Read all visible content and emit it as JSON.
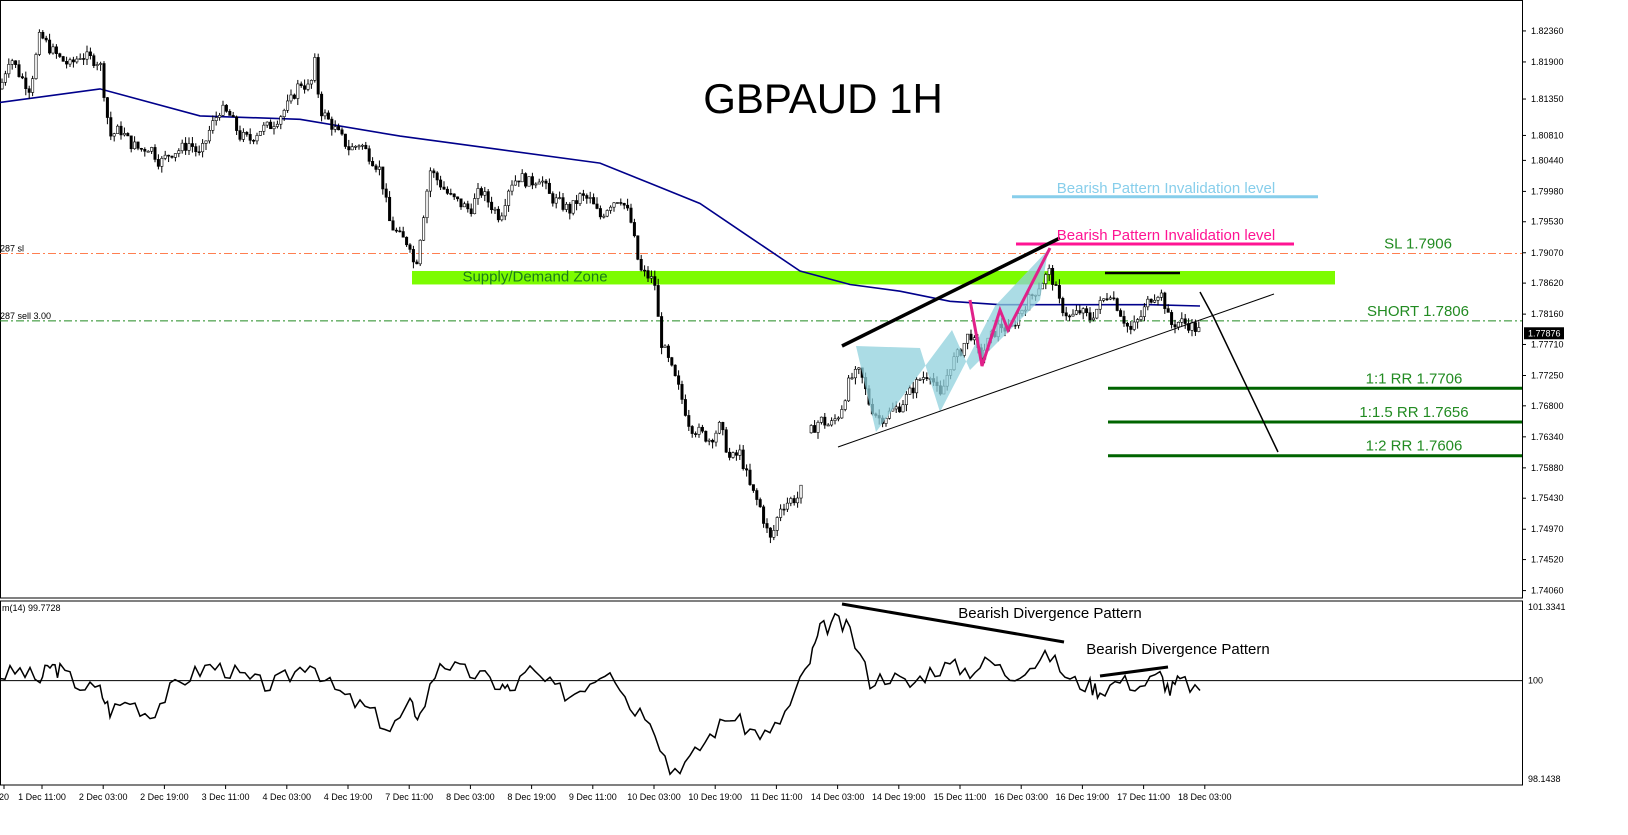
{
  "title": "GBPAUD 1H",
  "chart_data": [
    {
      "type": "candlestick",
      "title": "GBPAUD 1H",
      "y_ticks": [
        "1.82360",
        "1.81900",
        "1.81350",
        "1.80810",
        "1.80440",
        "1.79980",
        "1.79530",
        "1.79070",
        "1.78620",
        "1.78160",
        "1.77710",
        "1.77250",
        "1.76800",
        "1.76340",
        "1.75880",
        "1.75430",
        "1.74970",
        "1.74520",
        "1.74060"
      ],
      "x_ticks": [
        "20",
        "1 Dec 11:00",
        "2 Dec 03:00",
        "2 Dec 19:00",
        "3 Dec 11:00",
        "4 Dec 03:00",
        "4 Dec 19:00",
        "7 Dec 11:00",
        "8 Dec 03:00",
        "8 Dec 19:00",
        "9 Dec 11:00",
        "10 Dec 03:00",
        "10 Dec 19:00",
        "11 Dec 11:00",
        "14 Dec 03:00",
        "14 Dec 19:00",
        "15 Dec 11:00",
        "16 Dec 03:00",
        "16 Dec 19:00",
        "17 Dec 11:00",
        "18 Dec 03:00"
      ],
      "current_price": "1.77876",
      "ylim": [
        1.7395,
        1.827
      ],
      "close_path": [
        [
          0,
          1.815
        ],
        [
          10,
          1.82
        ],
        [
          20,
          1.817
        ],
        [
          30,
          1.815
        ],
        [
          40,
          1.823
        ],
        [
          50,
          1.821
        ],
        [
          60,
          1.8195
        ],
        [
          70,
          1.8185
        ],
        [
          80,
          1.82
        ],
        [
          90,
          1.8195
        ],
        [
          100,
          1.819
        ],
        [
          110,
          1.808
        ],
        [
          120,
          1.809
        ],
        [
          130,
          1.807
        ],
        [
          140,
          1.806
        ],
        [
          150,
          1.8065
        ],
        [
          160,
          1.804
        ],
        [
          170,
          1.8055
        ],
        [
          180,
          1.806
        ],
        [
          190,
          1.807
        ],
        [
          200,
          1.805
        ],
        [
          210,
          1.809
        ],
        [
          220,
          1.812
        ],
        [
          230,
          1.811
        ],
        [
          240,
          1.808
        ],
        [
          250,
          1.8075
        ],
        [
          260,
          1.809
        ],
        [
          270,
          1.8095
        ],
        [
          280,
          1.811
        ],
        [
          290,
          1.813
        ],
        [
          300,
          1.816
        ],
        [
          310,
          1.815
        ],
        [
          315,
          1.819
        ],
        [
          320,
          1.812
        ],
        [
          330,
          1.81
        ],
        [
          340,
          1.808
        ],
        [
          350,
          1.806
        ],
        [
          360,
          1.807
        ],
        [
          370,
          1.805
        ],
        [
          380,
          1.803
        ],
        [
          390,
          1.795
        ],
        [
          400,
          1.793
        ],
        [
          410,
          1.792
        ],
        [
          415,
          1.788
        ],
        [
          420,
          1.793
        ],
        [
          430,
          1.803
        ],
        [
          440,
          1.801
        ],
        [
          450,
          1.799
        ],
        [
          460,
          1.798
        ],
        [
          470,
          1.797
        ],
        [
          480,
          1.8
        ],
        [
          490,
          1.798
        ],
        [
          500,
          1.796
        ],
        [
          510,
          1.801
        ],
        [
          520,
          1.802
        ],
        [
          530,
          1.801
        ],
        [
          540,
          1.802
        ],
        [
          550,
          1.799
        ],
        [
          560,
          1.798
        ],
        [
          570,
          1.797
        ],
        [
          580,
          1.799
        ],
        [
          590,
          1.7985
        ],
        [
          600,
          1.796
        ],
        [
          610,
          1.798
        ],
        [
          620,
          1.799
        ],
        [
          630,
          1.796
        ],
        [
          640,
          1.788
        ],
        [
          650,
          1.787
        ],
        [
          655,
          1.786
        ],
        [
          660,
          1.778
        ],
        [
          670,
          1.774
        ],
        [
          680,
          1.77
        ],
        [
          690,
          1.765
        ],
        [
          700,
          1.764
        ],
        [
          710,
          1.763
        ],
        [
          720,
          1.765
        ],
        [
          730,
          1.76
        ],
        [
          740,
          1.761
        ],
        [
          750,
          1.756
        ],
        [
          760,
          1.753
        ],
        [
          770,
          1.748
        ],
        [
          775,
          1.75
        ],
        [
          780,
          1.753
        ],
        [
          790,
          1.754
        ],
        [
          800,
          1.7545
        ],
        [
          810,
          1.764
        ],
        [
          820,
          1.766
        ],
        [
          830,
          1.765
        ],
        [
          840,
          1.767
        ],
        [
          850,
          1.772
        ],
        [
          860,
          1.773
        ],
        [
          870,
          1.768
        ],
        [
          880,
          1.766
        ],
        [
          890,
          1.767
        ],
        [
          900,
          1.768
        ],
        [
          910,
          1.77
        ],
        [
          920,
          1.772
        ],
        [
          930,
          1.773
        ],
        [
          940,
          1.769
        ],
        [
          950,
          1.774
        ],
        [
          960,
          1.776
        ],
        [
          970,
          1.779
        ],
        [
          980,
          1.775
        ],
        [
          990,
          1.778
        ],
        [
          1000,
          1.78
        ],
        [
          1010,
          1.779
        ],
        [
          1020,
          1.782
        ],
        [
          1030,
          1.784
        ],
        [
          1040,
          1.786
        ],
        [
          1050,
          1.788
        ],
        [
          1060,
          1.783
        ],
        [
          1070,
          1.781
        ],
        [
          1080,
          1.782
        ],
        [
          1090,
          1.781
        ],
        [
          1100,
          1.783
        ],
        [
          1110,
          1.785
        ],
        [
          1120,
          1.782
        ],
        [
          1130,
          1.779
        ],
        [
          1140,
          1.781
        ],
        [
          1150,
          1.784
        ],
        [
          1160,
          1.785
        ],
        [
          1165,
          1.783
        ],
        [
          1170,
          1.78
        ],
        [
          1180,
          1.7805
        ],
        [
          1190,
          1.78
        ],
        [
          1200,
          1.779
        ]
      ],
      "ma_path": [
        [
          0,
          1.813
        ],
        [
          100,
          1.815
        ],
        [
          200,
          1.811
        ],
        [
          300,
          1.8105
        ],
        [
          400,
          1.808
        ],
        [
          500,
          1.806
        ],
        [
          600,
          1.804
        ],
        [
          650,
          1.801
        ],
        [
          700,
          1.798
        ],
        [
          750,
          1.793
        ],
        [
          800,
          1.788
        ],
        [
          850,
          1.786
        ],
        [
          900,
          1.785
        ],
        [
          950,
          1.7835
        ],
        [
          1000,
          1.783
        ],
        [
          1050,
          1.783
        ],
        [
          1100,
          1.783
        ],
        [
          1150,
          1.783
        ],
        [
          1200,
          1.7828
        ]
      ],
      "levels": [
        {
          "label": "Bearish Pattern Invalidation level",
          "price": 1.799,
          "color": "#87ceeb"
        },
        {
          "label": "Bearish Pattern Invalidation level",
          "price": 1.792,
          "color": "#ff1493"
        },
        {
          "label": "SL 1.7906",
          "price": 1.7906,
          "color": "#ff7f50",
          "style": "dashdot"
        },
        {
          "label": "SHORT 1.7806",
          "price": 1.7806,
          "color": "#228b22",
          "style": "dashdot"
        },
        {
          "label": "1:1 RR 1.7706",
          "price": 1.7706,
          "color": "#006400"
        },
        {
          "label": "1:1.5 RR 1.7656",
          "price": 1.7656,
          "color": "#006400"
        },
        {
          "label": "1:2 RR 1.7606",
          "price": 1.7606,
          "color": "#006400"
        }
      ],
      "zone": {
        "label": "Supply/Demand Zone",
        "price_top": 1.788,
        "price_bottom": 1.786,
        "color": "#7cfc00"
      },
      "order_labels": [
        "287 sl",
        "287 sell 3.00"
      ]
    },
    {
      "type": "line",
      "indicator_label": "m(14) 99.7728",
      "y_ticks": [
        "101.3341",
        "100",
        "98.1438"
      ],
      "ylim": [
        97.9,
        101.6
      ],
      "baseline": 100,
      "series": [
        [
          0,
          100.1
        ],
        [
          20,
          100.2
        ],
        [
          40,
          100.0
        ],
        [
          50,
          100.3
        ],
        [
          60,
          100.2
        ],
        [
          80,
          99.9
        ],
        [
          100,
          99.8
        ],
        [
          110,
          99.4
        ],
        [
          130,
          99.6
        ],
        [
          150,
          99.3
        ],
        [
          170,
          99.8
        ],
        [
          190,
          100.1
        ],
        [
          210,
          100.3
        ],
        [
          230,
          100.2
        ],
        [
          250,
          100.0
        ],
        [
          270,
          99.9
        ],
        [
          290,
          100.1
        ],
        [
          310,
          100.4
        ],
        [
          330,
          99.9
        ],
        [
          350,
          99.6
        ],
        [
          370,
          99.4
        ],
        [
          390,
          99.0
        ],
        [
          410,
          99.5
        ],
        [
          420,
          99.3
        ],
        [
          440,
          100.4
        ],
        [
          460,
          100.2
        ],
        [
          480,
          100.1
        ],
        [
          500,
          99.9
        ],
        [
          510,
          99.8
        ],
        [
          530,
          100.2
        ],
        [
          550,
          99.9
        ],
        [
          570,
          99.7
        ],
        [
          590,
          100.0
        ],
        [
          610,
          100.3
        ],
        [
          630,
          99.5
        ],
        [
          650,
          99.3
        ],
        [
          670,
          98.2
        ],
        [
          690,
          98.4
        ],
        [
          710,
          98.9
        ],
        [
          730,
          99.3
        ],
        [
          750,
          99.0
        ],
        [
          770,
          98.9
        ],
        [
          790,
          99.5
        ],
        [
          810,
          100.4
        ],
        [
          820,
          101.0
        ],
        [
          835,
          101.2
        ],
        [
          850,
          101.0
        ],
        [
          870,
          100.0
        ],
        [
          890,
          100.1
        ],
        [
          910,
          99.9
        ],
        [
          930,
          100.2
        ],
        [
          950,
          100.3
        ],
        [
          970,
          100.2
        ],
        [
          990,
          100.4
        ],
        [
          1010,
          100.1
        ],
        [
          1030,
          100.3
        ],
        [
          1050,
          100.5
        ],
        [
          1070,
          100.0
        ],
        [
          1090,
          99.9
        ],
        [
          1100,
          99.8
        ],
        [
          1120,
          100.0
        ],
        [
          1140,
          99.9
        ],
        [
          1160,
          100.1
        ],
        [
          1170,
          99.8
        ],
        [
          1180,
          100.0
        ],
        [
          1200,
          99.8
        ]
      ],
      "annotations": [
        "Bearish Divergence Pattern",
        "Bearish Divergence Pattern"
      ]
    }
  ]
}
